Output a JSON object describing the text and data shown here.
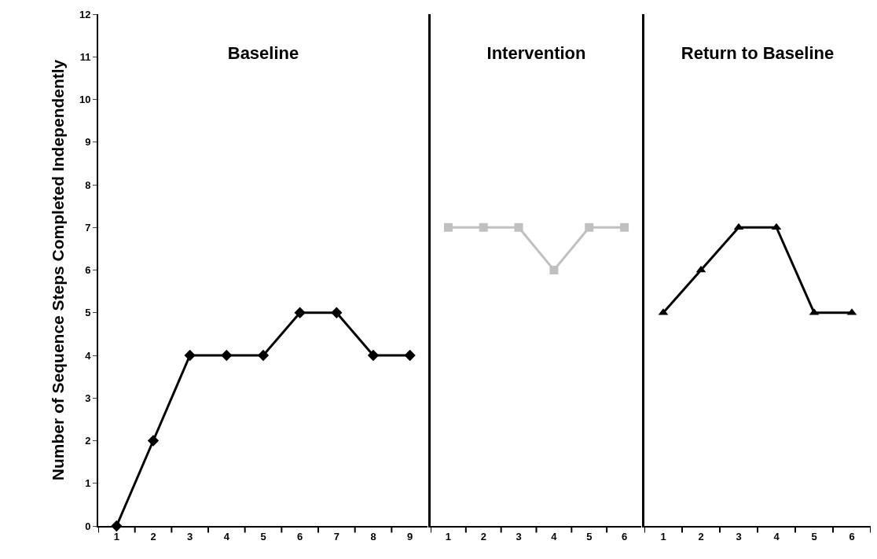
{
  "chart_data": [
    {
      "type": "line",
      "title": "Baseline",
      "ylabel": "Number of Sequence Steps Completed Independently",
      "categories": [
        "1",
        "2",
        "3",
        "4",
        "5",
        "6",
        "7",
        "8",
        "9"
      ],
      "values": [
        0,
        2,
        4,
        4,
        4,
        5,
        5,
        4,
        4
      ],
      "color": "#000000",
      "marker": "diamond",
      "line_style": "solid",
      "ylim": [
        0,
        12
      ],
      "yticks": [
        0,
        1,
        2,
        3,
        4,
        5,
        6,
        7,
        8,
        9,
        10,
        11,
        12
      ]
    },
    {
      "type": "line",
      "title": "Intervention",
      "categories": [
        "1",
        "2",
        "3",
        "4",
        "5",
        "6"
      ],
      "values": [
        7,
        7,
        7,
        6,
        7,
        7
      ],
      "color": "#c0c0c0",
      "marker": "square",
      "line_style": "solid",
      "ylim": [
        0,
        12
      ],
      "yticks": [
        0,
        1,
        2,
        3,
        4,
        5,
        6,
        7,
        8,
        9,
        10,
        11,
        12
      ],
      "tick_labels": "x"
    },
    {
      "type": "line",
      "title": "Return to Baseline",
      "categories": [
        "1",
        "2",
        "3",
        "4",
        "5",
        "6"
      ],
      "values": [
        5,
        6,
        7,
        7,
        5,
        5
      ],
      "color": "#000000",
      "marker": "triangle",
      "line_style": "solid",
      "ylim": [
        0,
        12
      ],
      "yticks": [
        0,
        1,
        2,
        3,
        4,
        5,
        6,
        7,
        8,
        9,
        10,
        11,
        12
      ],
      "tick_labels": "x"
    }
  ]
}
